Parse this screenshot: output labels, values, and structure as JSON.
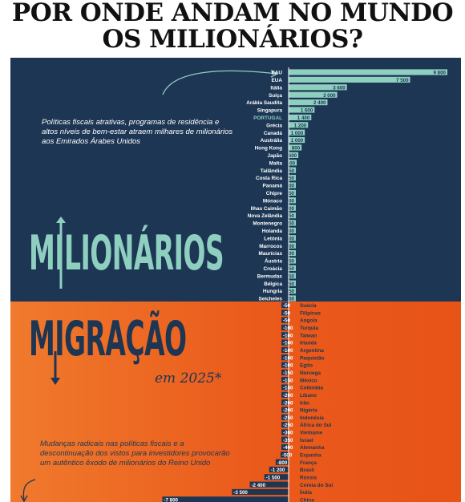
{
  "headline": {
    "line1": "POR ONDE ANDAM NO MUNDO",
    "line2": "OS MILIONÁRIOS?"
  },
  "section_top": {
    "word": "MILIONÁRIOS",
    "note": "Políticas fiscais atrativas, programas de residência e altos níveis de bem-estar atraem milhares de milionários aos Emirados Árabes Unidos"
  },
  "section_bottom": {
    "word": "MIGRAÇÃO",
    "year_label": "em 2025*",
    "note": "Mudanças radicais nas políticas fiscais e a descontinuação dos vistos para investidores provocarão um autêntico êxodo de milionários do Reino Unido"
  },
  "colors": {
    "navy": "#1d3654",
    "teal": "#8ecfc0",
    "orange": "#ea5a1b",
    "highlight_label": "#8ecfc0"
  },
  "chart_data": [
    {
      "type": "bar",
      "orientation": "horizontal",
      "highlight": "PORTUGAL",
      "categories": [
        "EAU",
        "EUA",
        "Itália",
        "Suíça",
        "Arábia Saudita",
        "Singapura",
        "PORTUGAL",
        "Grécia",
        "Canadá",
        "Austrália",
        "Hong Kong",
        "Japão",
        "Malta",
        "Tailândia",
        "Costa Rica",
        "Panamá",
        "Chipre",
        "Mónaco",
        "Ilhas Caimão",
        "Nova Zelândia",
        "Montenegro",
        "Holanda",
        "Letónia",
        "Marrocos",
        "Maurícias",
        "Áustria",
        "Croácia",
        "Bermudas",
        "Bélgica",
        "Hungria",
        "Seicheles"
      ],
      "values": [
        9800,
        7500,
        3600,
        3000,
        2400,
        1600,
        1400,
        1200,
        1000,
        1000,
        800,
        600,
        500,
        450,
        350,
        300,
        250,
        200,
        200,
        150,
        150,
        100,
        100,
        100,
        100,
        50,
        50,
        50,
        50,
        50,
        50
      ],
      "value_labels": [
        "9 800",
        "7 500",
        "3 600",
        "3 000",
        "2 400",
        "1 600",
        "1 400",
        "1 200",
        "1 000",
        "1 000",
        "800",
        "600",
        "500",
        "450",
        "350",
        "300",
        "250",
        "200",
        "200",
        "150",
        "150",
        "100",
        "100",
        "100",
        "100",
        "50",
        "50",
        "50",
        "50",
        "50",
        "50"
      ]
    },
    {
      "type": "bar",
      "orientation": "horizontal",
      "categories": [
        "Suécia",
        "Filipinas",
        "Angola",
        "Turquia",
        "Taiwan",
        "Irlanda",
        "Argentina",
        "Paquistão",
        "Egito",
        "Noruega",
        "México",
        "Colômbia",
        "Líbano",
        "Irão",
        "Nigéria",
        "Indonésia",
        "África do Sul",
        "Vietname",
        "Israel",
        "Alemanha",
        "Espanha",
        "França",
        "Brasil",
        "Rússia",
        "Coreia do Sul",
        "Índia",
        "China"
      ],
      "values": [
        -50,
        -50,
        -50,
        -100,
        -100,
        -100,
        -100,
        -100,
        -100,
        -150,
        -150,
        -150,
        -200,
        -200,
        -200,
        -250,
        -250,
        -300,
        -350,
        -400,
        -500,
        -800,
        -1200,
        -1500,
        -2400,
        -3500,
        -7800
      ],
      "value_labels": [
        "-50",
        "-50",
        "-50",
        "-100",
        "-100",
        "-100",
        "-100",
        "-100",
        "-100",
        "-150",
        "-150",
        "-150",
        "-200",
        "-200",
        "-200",
        "-250",
        "-250",
        "-300",
        "-350",
        "-400",
        "-500",
        "-800",
        "-1 200",
        "-1 500",
        "-2 400",
        "-3 500",
        "-7 800"
      ]
    }
  ]
}
